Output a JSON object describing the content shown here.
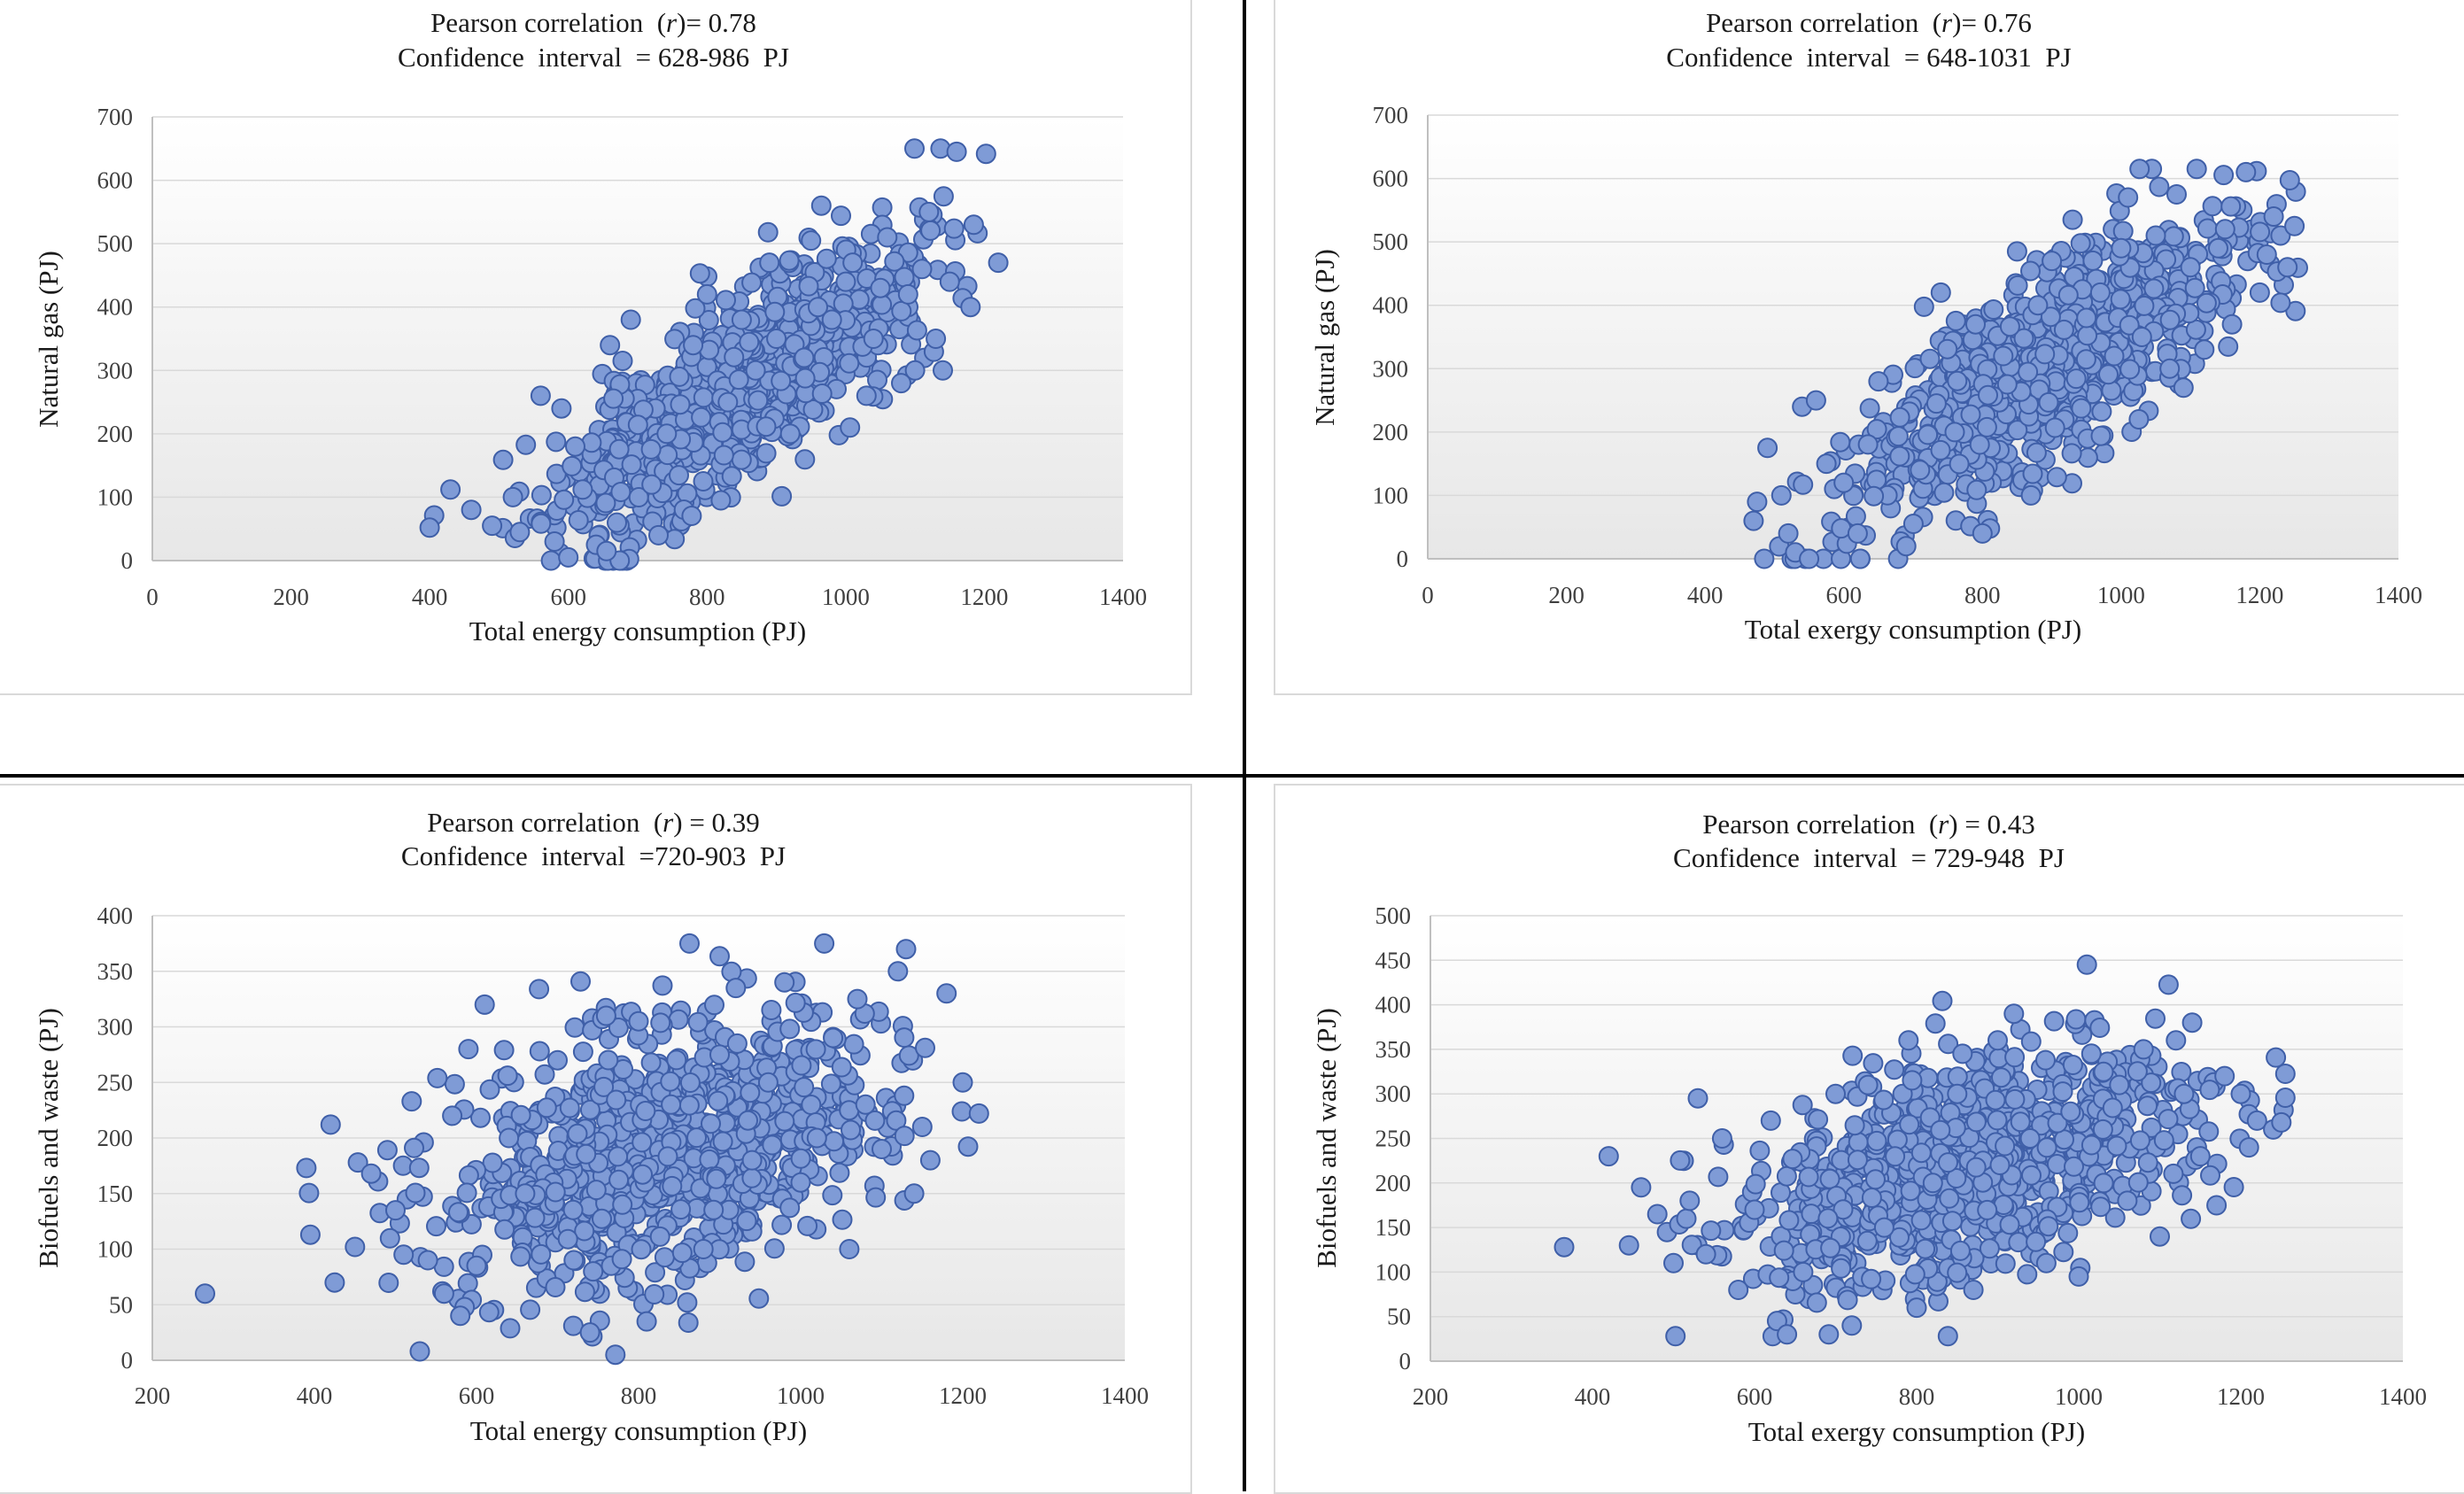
{
  "colors": {
    "marker_fill": "#7f9bd6",
    "marker_edge": "#3f5fa8",
    "plot_bg_top": "#ffffff",
    "plot_bg_bottom": "#e7e7e7",
    "axis_line": "#bfbfbf",
    "grid": "#d9d9d9"
  },
  "chart_data": [
    {
      "type": "scatter",
      "title_line1_pre": "Pearson correlation  (",
      "title_r": "r",
      "title_line1_post": ")= 0.78",
      "subtitle": "Confidence  interval  = 628-986  PJ",
      "xlabel": "Total energy consumption (PJ)",
      "ylabel": "Natural gas (PJ)",
      "xlim": [
        0,
        1400
      ],
      "ylim": [
        0,
        700
      ],
      "xticks": [
        "0",
        "200",
        "400",
        "600",
        "800",
        "1000",
        "1200",
        "1400"
      ],
      "yticks": [
        "0",
        "100",
        "200",
        "300",
        "400",
        "500",
        "600",
        "700"
      ],
      "grid": true,
      "n_points": 1000,
      "points_sample": {
        "x": [
          400,
          430,
          460,
          490,
          520,
          530,
          560,
          575,
          580,
          590,
          600,
          610,
          640,
          655,
          660,
          670,
          690,
          720,
          730,
          760,
          780,
          800,
          820,
          830,
          850,
          870,
          890,
          900,
          920,
          940,
          950,
          960,
          980,
          1000,
          1010,
          1030,
          1040,
          1050,
          1060,
          1080,
          1090,
          1100,
          1110,
          1120,
          1130,
          1140,
          1150,
          1160,
          1180,
          1220
        ],
        "y": [
          52,
          112,
          80,
          55,
          100,
          45,
          260,
          0,
          30,
          240,
          5,
          180,
          25,
          15,
          340,
          60,
          380,
          120,
          40,
          290,
          340,
          420,
          95,
          250,
          380,
          300,
          470,
          350,
          200,
          320,
          505,
          400,
          380,
          440,
          470,
          260,
          350,
          430,
          510,
          280,
          420,
          300,
          460,
          550,
          350,
          300,
          440,
          645,
          400,
          470
        ]
      }
    },
    {
      "type": "scatter",
      "title_line1_pre": "Pearson correlation  (",
      "title_r": "r",
      "title_line1_post": ")= 0.76",
      "subtitle": "Confidence  interval  = 648-1031  PJ",
      "xlabel": "Total exergy consumption (PJ)",
      "ylabel": "Natural gas (PJ)",
      "xlim": [
        0,
        1400
      ],
      "ylim": [
        0,
        700
      ],
      "xticks": [
        "0",
        "200",
        "400",
        "600",
        "800",
        "1000",
        "1200",
        "1400"
      ],
      "yticks": [
        "0",
        "100",
        "200",
        "300",
        "400",
        "500",
        "600",
        "700"
      ],
      "grid": true,
      "n_points": 1000,
      "points_sample": {
        "x": [
          470,
          475,
          490,
          510,
          520,
          530,
          540,
          550,
          560,
          575,
          600,
          620,
          650,
          690,
          710,
          740,
          760,
          790,
          800,
          830,
          850,
          870,
          880,
          900,
          930,
          950,
          970,
          990,
          1000,
          1010,
          1030,
          1050,
          1070,
          1080,
          1090,
          1100,
          1120,
          1140,
          1150,
          1160,
          1180,
          1200,
          1210,
          1220,
          1230,
          1240,
          1250
        ],
        "y": [
          60,
          90,
          175,
          100,
          40,
          10,
          240,
          0,
          250,
          150,
          120,
          40,
          280,
          20,
          140,
          420,
          200,
          370,
          40,
          320,
          485,
          100,
          400,
          470,
          535,
          380,
          420,
          320,
          490,
          570,
          350,
          510,
          300,
          575,
          270,
          460,
          330,
          490,
          520,
          370,
          610,
          420,
          480,
          540,
          510,
          460,
          525
        ]
      }
    },
    {
      "type": "scatter",
      "title_line1_pre": "Pearson correlation  (",
      "title_r": "r",
      "title_line1_post": ") = 0.39",
      "subtitle": "Confidence  interval  =720-903  PJ",
      "xlabel": "Total energy consumption (PJ)",
      "ylabel": "Biofuels and waste (PJ)",
      "xlim": [
        200,
        1400
      ],
      "ylim": [
        0,
        400
      ],
      "xticks": [
        "200",
        "400",
        "600",
        "800",
        "1000",
        "1200",
        "1400"
      ],
      "yticks": [
        "0",
        "50",
        "100",
        "150",
        "200",
        "250",
        "300",
        "350",
        "400"
      ],
      "grid": true,
      "n_points": 1000,
      "points_sample": {
        "x": [
          265,
          390,
          395,
          420,
          425,
          450,
          470,
          500,
          510,
          520,
          530,
          540,
          560,
          570,
          580,
          590,
          600,
          610,
          640,
          660,
          700,
          720,
          740,
          760,
          780,
          800,
          810,
          840,
          860,
          880,
          900,
          920,
          940,
          960,
          980,
          1000,
          1020,
          1040,
          1060,
          1070,
          1080,
          1100,
          1120,
          1130,
          1140,
          1150,
          1160,
          1180,
          1200,
          1220
        ],
        "y": [
          60,
          173,
          113,
          212,
          70,
          102,
          168,
          135,
          95,
          233,
          8,
          90,
          60,
          220,
          40,
          280,
          85,
          320,
          200,
          150,
          270,
          90,
          25,
          310,
          140,
          305,
          35,
          230,
          52,
          100,
          275,
          335,
          180,
          250,
          340,
          160,
          200,
          290,
          100,
          325,
          230,
          190,
          350,
          370,
          150,
          210,
          180,
          330,
          250,
          222
        ]
      }
    },
    {
      "type": "scatter",
      "title_line1_pre": "Pearson correlation  (",
      "title_r": "r",
      "title_line1_post": ") = 0.43",
      "subtitle": "Confidence  interval  = 729-948  PJ",
      "xlabel": "Total exergy consumption (PJ)",
      "ylabel": "Biofuels and waste (PJ)",
      "xlim": [
        200,
        1400
      ],
      "ylim": [
        0,
        500
      ],
      "xticks": [
        "200",
        "400",
        "600",
        "800",
        "1000",
        "1200",
        "1400"
      ],
      "yticks": [
        "0",
        "50",
        "100",
        "150",
        "200",
        "250",
        "300",
        "350",
        "400",
        "450",
        "500"
      ],
      "grid": true,
      "n_points": 1000,
      "points_sample": {
        "x": [
          365,
          420,
          445,
          460,
          480,
          500,
          520,
          530,
          540,
          560,
          580,
          600,
          620,
          640,
          660,
          700,
          720,
          740,
          760,
          790,
          800,
          820,
          850,
          870,
          900,
          920,
          940,
          960,
          990,
          1000,
          1010,
          1030,
          1050,
          1060,
          1080,
          1100,
          1120,
          1130,
          1140,
          1150,
          1170,
          1180,
          1200,
          1210,
          1220,
          1240,
          1250
        ],
        "y": [
          128,
          230,
          130,
          195,
          165,
          110,
          180,
          295,
          120,
          250,
          80,
          170,
          270,
          30,
          100,
          300,
          40,
          310,
          150,
          360,
          60,
          200,
          300,
          80,
          360,
          390,
          250,
          110,
          280,
          95,
          445,
          260,
          310,
          180,
          350,
          140,
          360,
          300,
          380,
          230,
          175,
          320,
          300,
          240,
          270,
          260,
          268
        ]
      }
    }
  ]
}
